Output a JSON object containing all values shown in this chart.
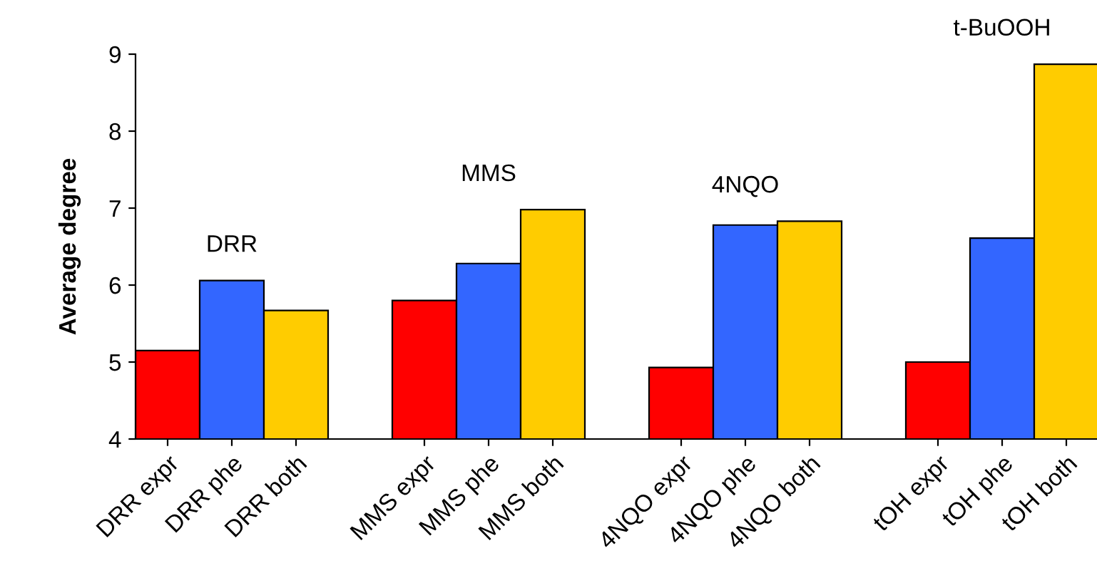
{
  "chart_data": {
    "type": "bar",
    "ylabel": "Average degree",
    "categories": [
      "DRR expr",
      "DRR phe",
      "DRR both",
      null,
      "MMS expr",
      "MMS phe",
      "MMS both",
      null,
      "4NQO expr",
      "4NQO phe",
      "4NQO both",
      null,
      "tOH expr",
      "tOH phe",
      "tOH both"
    ],
    "values": [
      5.15,
      6.06,
      5.67,
      null,
      5.8,
      6.28,
      6.98,
      null,
      4.93,
      6.78,
      6.83,
      null,
      5.0,
      6.61,
      8.87
    ],
    "colors": [
      "#ff0000",
      "#3366ff",
      "#ffcc00",
      null,
      "#ff0000",
      "#3366ff",
      "#ffcc00",
      null,
      "#ff0000",
      "#3366ff",
      "#ffcc00",
      null,
      "#ff0000",
      "#3366ff",
      "#ffcc00"
    ],
    "ylim": [
      4,
      9
    ],
    "yticks": [
      4,
      5,
      6,
      7,
      8,
      9
    ],
    "annotations": [
      "DRR",
      "MMS",
      "4NQO",
      "t-BuOOH"
    ]
  }
}
